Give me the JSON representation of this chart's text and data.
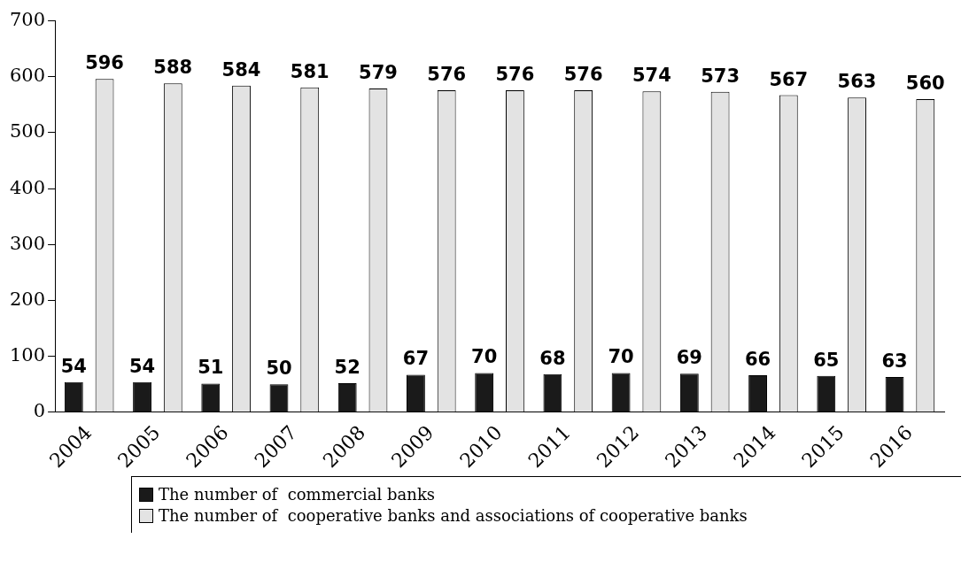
{
  "chart_data": {
    "type": "bar",
    "categories": [
      "2004",
      "2005",
      "2006",
      "2007",
      "2008",
      "2009",
      "2010",
      "2011",
      "2012",
      "2013",
      "2014",
      "2015",
      "2016"
    ],
    "series": [
      {
        "name": "The number of  commercial banks",
        "color": "#1a1a1a",
        "values": [
          54,
          54,
          51,
          50,
          52,
          67,
          70,
          68,
          70,
          69,
          66,
          65,
          63
        ]
      },
      {
        "name": "The number of  cooperative banks and associations of cooperative banks",
        "color": "#e3e3e3",
        "values": [
          596,
          588,
          584,
          581,
          579,
          576,
          576,
          576,
          574,
          573,
          567,
          563,
          560
        ]
      }
    ],
    "ylim": [
      0,
      700
    ],
    "yticks": [
      0,
      100,
      200,
      300,
      400,
      500,
      600,
      700
    ],
    "grid": false,
    "data_labels": true,
    "legend": "bottom"
  }
}
